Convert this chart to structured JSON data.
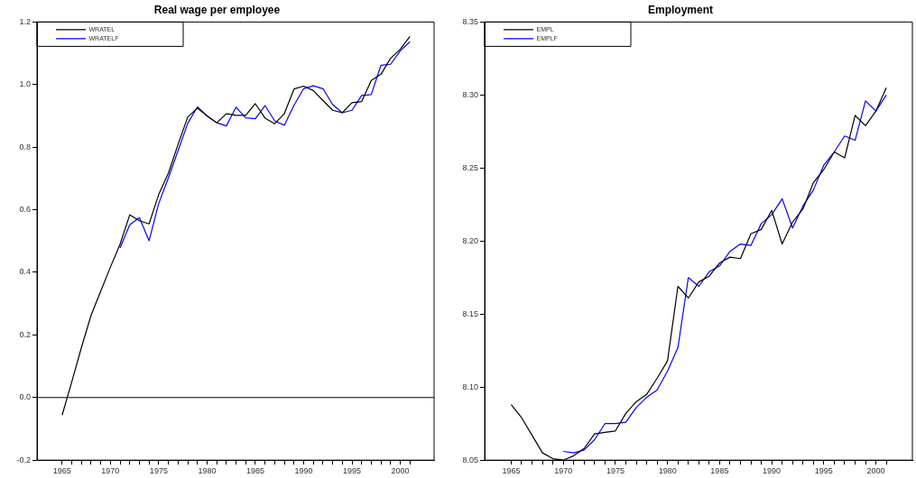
{
  "chart_data": [
    {
      "type": "line",
      "title": "Real wage per employee",
      "x": [
        1965,
        1966,
        1967,
        1968,
        1969,
        1970,
        1971,
        1972,
        1973,
        1974,
        1975,
        1976,
        1977,
        1978,
        1979,
        1980,
        1981,
        1982,
        1983,
        1984,
        1985,
        1986,
        1987,
        1988,
        1989,
        1990,
        1991,
        1992,
        1993,
        1994,
        1995,
        1996,
        1997,
        1998,
        1999,
        2000,
        2001
      ],
      "series": [
        {
          "name": "WRATEL",
          "color": "#000000",
          "values": [
            -0.056,
            0.05,
            0.16,
            0.263,
            0.34,
            0.417,
            0.49,
            0.584,
            0.565,
            0.555,
            0.649,
            0.717,
            0.809,
            0.896,
            0.925,
            0.9,
            0.878,
            0.907,
            0.902,
            0.902,
            0.939,
            0.893,
            0.875,
            0.907,
            0.986,
            0.995,
            0.981,
            0.949,
            0.918,
            0.91,
            0.942,
            0.946,
            1.013,
            1.033,
            1.084,
            1.113,
            1.154
          ]
        },
        {
          "name": "WRATELF",
          "color": "#0000ff",
          "values": [
            null,
            null,
            null,
            null,
            null,
            null,
            0.478,
            0.552,
            0.575,
            0.501,
            0.62,
            0.702,
            0.789,
            0.876,
            0.929,
            0.9,
            0.878,
            0.868,
            0.928,
            0.894,
            0.891,
            0.933,
            0.884,
            0.87,
            0.934,
            0.987,
            0.996,
            0.987,
            0.936,
            0.91,
            0.918,
            0.965,
            0.968,
            1.062,
            1.065,
            1.108,
            1.137
          ]
        }
      ],
      "xlim": [
        1962.4,
        2003.5
      ],
      "xticks": [
        1965,
        {
          "value": 1966,
          "label": null
        },
        {
          "value": 1967,
          "label": null
        },
        {
          "value": 1968,
          "label": null
        },
        {
          "value": 1969,
          "label": null
        },
        1970,
        {
          "value": 1971,
          "label": null
        },
        {
          "value": 1972,
          "label": null
        },
        {
          "value": 1973,
          "label": null
        },
        {
          "value": 1974,
          "label": null
        },
        1975,
        {
          "value": 1976,
          "label": null
        },
        {
          "value": 1977,
          "label": null
        },
        {
          "value": 1978,
          "label": null
        },
        {
          "value": 1979,
          "label": null
        },
        1980,
        {
          "value": 1981,
          "label": null
        },
        {
          "value": 1982,
          "label": null
        },
        {
          "value": 1983,
          "label": null
        },
        {
          "value": 1984,
          "label": null
        },
        1985,
        {
          "value": 1986,
          "label": null
        },
        {
          "value": 1987,
          "label": null
        },
        {
          "value": 1988,
          "label": null
        },
        {
          "value": 1989,
          "label": null
        },
        1990,
        {
          "value": 1991,
          "label": null
        },
        {
          "value": 1992,
          "label": null
        },
        {
          "value": 1993,
          "label": null
        },
        {
          "value": 1994,
          "label": null
        },
        1995,
        {
          "value": 1996,
          "label": null
        },
        {
          "value": 1997,
          "label": null
        },
        {
          "value": 1998,
          "label": null
        },
        {
          "value": 1999,
          "label": null
        },
        2000,
        {
          "value": 2001,
          "label": null
        }
      ],
      "ylim": [
        -0.2,
        1.2
      ],
      "yticks": [
        -0.2,
        {
          "value": 0,
          "label": "0.0"
        },
        0.2,
        0.4,
        0.6,
        0.8,
        {
          "value": 1,
          "label": "1.0"
        },
        1.2
      ],
      "ref_lines": [
        {
          "axis": "y",
          "value": 0,
          "color": "#000000"
        }
      ],
      "grid": false,
      "legend": "top left",
      "marker": "none",
      "line_style": "solid"
    },
    {
      "type": "line",
      "title": "Employment",
      "x": [
        1965,
        1966,
        1967,
        1968,
        1969,
        1970,
        1971,
        1972,
        1973,
        1974,
        1975,
        1976,
        1977,
        1978,
        1979,
        1980,
        1981,
        1982,
        1983,
        1984,
        1985,
        1986,
        1987,
        1988,
        1989,
        1990,
        1991,
        1992,
        1993,
        1994,
        1995,
        1996,
        1997,
        1998,
        1999,
        2000,
        2001
      ],
      "series": [
        {
          "name": "EMPL",
          "color": "#000000",
          "values": [
            8.088,
            8.079,
            8.067,
            8.055,
            8.051,
            8.05,
            8.053,
            8.058,
            8.068,
            8.069,
            8.07,
            8.082,
            8.09,
            8.095,
            8.106,
            8.118,
            8.169,
            8.161,
            8.172,
            8.176,
            8.185,
            8.189,
            8.188,
            8.205,
            8.208,
            8.221,
            8.198,
            8.213,
            8.222,
            8.24,
            8.249,
            8.261,
            8.257,
            8.286,
            8.279,
            8.289,
            8.305
          ]
        },
        {
          "name": "EMPLF",
          "color": "#0000ff",
          "values": [
            null,
            null,
            null,
            null,
            null,
            8.056,
            8.055,
            8.057,
            8.064,
            8.075,
            8.075,
            8.076,
            8.086,
            8.093,
            8.098,
            8.111,
            8.127,
            8.175,
            8.169,
            8.179,
            8.183,
            8.193,
            8.198,
            8.197,
            8.212,
            8.218,
            8.229,
            8.209,
            8.224,
            8.235,
            8.252,
            8.261,
            8.272,
            8.269,
            8.296,
            8.289,
            8.3
          ]
        }
      ],
      "xlim": [
        1962.45,
        2003.5
      ],
      "xticks": [
        1965,
        {
          "value": 1966,
          "label": null
        },
        {
          "value": 1967,
          "label": null
        },
        {
          "value": 1968,
          "label": null
        },
        {
          "value": 1969,
          "label": null
        },
        1970,
        {
          "value": 1971,
          "label": null
        },
        {
          "value": 1972,
          "label": null
        },
        {
          "value": 1973,
          "label": null
        },
        {
          "value": 1974,
          "label": null
        },
        1975,
        {
          "value": 1976,
          "label": null
        },
        {
          "value": 1977,
          "label": null
        },
        {
          "value": 1978,
          "label": null
        },
        {
          "value": 1979,
          "label": null
        },
        1980,
        {
          "value": 1981,
          "label": null
        },
        {
          "value": 1982,
          "label": null
        },
        {
          "value": 1983,
          "label": null
        },
        {
          "value": 1984,
          "label": null
        },
        1985,
        {
          "value": 1986,
          "label": null
        },
        {
          "value": 1987,
          "label": null
        },
        {
          "value": 1988,
          "label": null
        },
        {
          "value": 1989,
          "label": null
        },
        1990,
        {
          "value": 1991,
          "label": null
        },
        {
          "value": 1992,
          "label": null
        },
        {
          "value": 1993,
          "label": null
        },
        {
          "value": 1994,
          "label": null
        },
        1995,
        {
          "value": 1996,
          "label": null
        },
        {
          "value": 1997,
          "label": null
        },
        {
          "value": 1998,
          "label": null
        },
        {
          "value": 1999,
          "label": null
        },
        2000,
        {
          "value": 2001,
          "label": null
        }
      ],
      "ylim": [
        8.05,
        8.35
      ],
      "yticks": [
        8.05,
        {
          "value": 8.1,
          "label": "8.10"
        },
        8.15,
        {
          "value": 8.2,
          "label": "8.20"
        },
        8.25,
        {
          "value": 8.3,
          "label": "8.30"
        },
        8.35
      ],
      "grid": false,
      "legend": "top left",
      "marker": "none",
      "line_style": "solid"
    }
  ]
}
